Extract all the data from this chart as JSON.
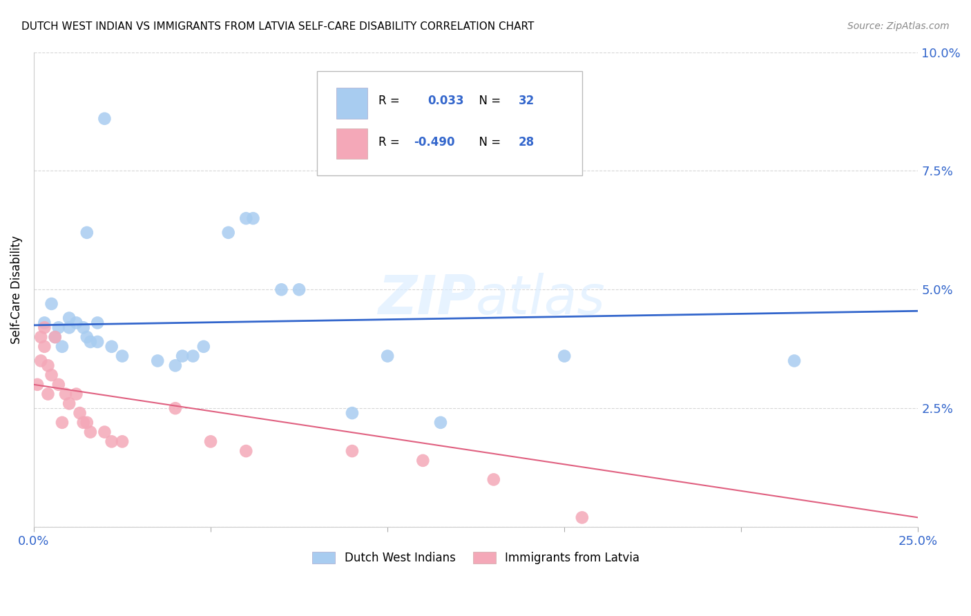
{
  "title": "DUTCH WEST INDIAN VS IMMIGRANTS FROM LATVIA SELF-CARE DISABILITY CORRELATION CHART",
  "source": "Source: ZipAtlas.com",
  "ylabel": "Self-Care Disability",
  "yticks": [
    0.0,
    0.025,
    0.05,
    0.075,
    0.1
  ],
  "ytick_labels": [
    "",
    "2.5%",
    "5.0%",
    "7.5%",
    "10.0%"
  ],
  "xlim": [
    0.0,
    0.25
  ],
  "ylim": [
    0.0,
    0.1
  ],
  "blue_color": "#A8CCF0",
  "pink_color": "#F4A8B8",
  "line_blue": "#3366CC",
  "line_pink": "#E06080",
  "axis_color": "#3366CC",
  "legend_r_blue": "0.033",
  "legend_n_blue": "32",
  "legend_r_pink": "-0.490",
  "legend_n_pink": "28",
  "blue_scatter_x": [
    0.003,
    0.005,
    0.006,
    0.007,
    0.008,
    0.01,
    0.01,
    0.012,
    0.014,
    0.015,
    0.015,
    0.016,
    0.018,
    0.018,
    0.02,
    0.022,
    0.025,
    0.035,
    0.04,
    0.042,
    0.045,
    0.048,
    0.055,
    0.06,
    0.062,
    0.07,
    0.075,
    0.09,
    0.1,
    0.115,
    0.15,
    0.215
  ],
  "blue_scatter_y": [
    0.043,
    0.047,
    0.04,
    0.042,
    0.038,
    0.044,
    0.042,
    0.043,
    0.042,
    0.062,
    0.04,
    0.039,
    0.043,
    0.039,
    0.086,
    0.038,
    0.036,
    0.035,
    0.034,
    0.036,
    0.036,
    0.038,
    0.062,
    0.065,
    0.065,
    0.05,
    0.05,
    0.024,
    0.036,
    0.022,
    0.036,
    0.035
  ],
  "pink_scatter_x": [
    0.001,
    0.002,
    0.002,
    0.003,
    0.003,
    0.004,
    0.004,
    0.005,
    0.006,
    0.007,
    0.008,
    0.009,
    0.01,
    0.012,
    0.013,
    0.014,
    0.015,
    0.016,
    0.02,
    0.022,
    0.025,
    0.04,
    0.05,
    0.06,
    0.09,
    0.11,
    0.13,
    0.155
  ],
  "pink_scatter_y": [
    0.03,
    0.04,
    0.035,
    0.042,
    0.038,
    0.034,
    0.028,
    0.032,
    0.04,
    0.03,
    0.022,
    0.028,
    0.026,
    0.028,
    0.024,
    0.022,
    0.022,
    0.02,
    0.02,
    0.018,
    0.018,
    0.025,
    0.018,
    0.016,
    0.016,
    0.014,
    0.01,
    0.002
  ],
  "blue_line_x": [
    0.0,
    0.25
  ],
  "blue_line_y": [
    0.0425,
    0.0455
  ],
  "pink_line_x": [
    0.0,
    0.25
  ],
  "pink_line_y": [
    0.03,
    0.002
  ],
  "background_color": "#FFFFFF",
  "grid_color": "#CCCCCC"
}
